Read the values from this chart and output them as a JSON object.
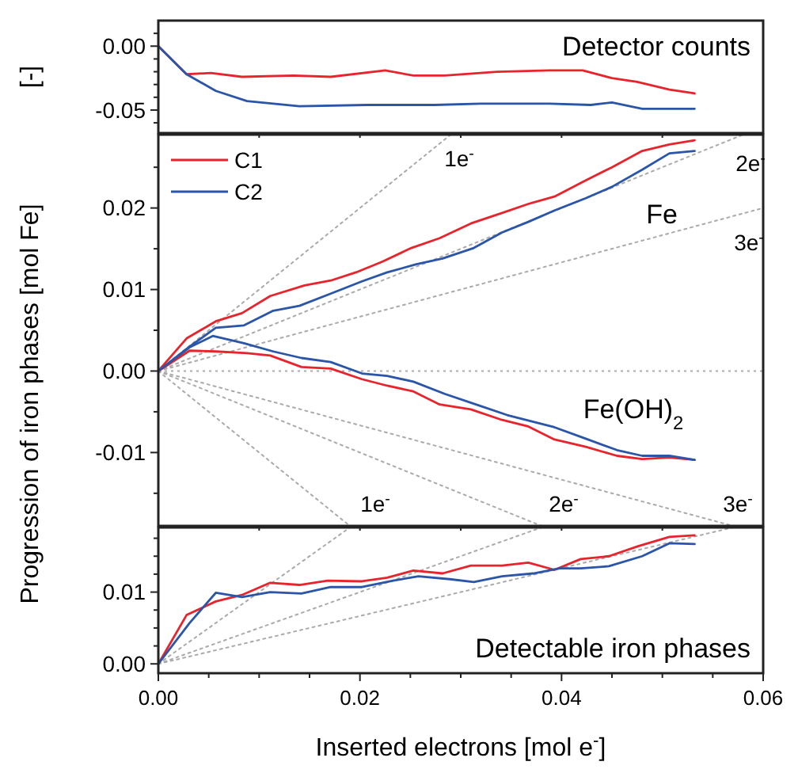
{
  "chart_data": [
    {
      "type": "line",
      "title": "Detector counts",
      "ylabel": "[-]",
      "xlim": [
        0,
        0.06
      ],
      "ylim": [
        -0.068,
        0.02
      ],
      "tick_labels": "y",
      "grid": false,
      "legend": false,
      "xticks": [
        {
          "value": 0,
          "label": null
        },
        {
          "value": 0.01,
          "label": null
        },
        {
          "value": 0.02,
          "label": null
        },
        {
          "value": 0.03,
          "label": null
        },
        {
          "value": 0.04,
          "label": null
        },
        {
          "value": 0.05,
          "label": null
        },
        {
          "value": 0.06,
          "label": null
        }
      ],
      "yticks": [
        {
          "value": -0.06,
          "label": null
        },
        {
          "value": -0.05,
          "label": "-0.05"
        },
        {
          "value": -0.04,
          "label": null
        },
        {
          "value": -0.03,
          "label": null
        },
        {
          "value": -0.02,
          "label": null
        },
        {
          "value": -0.01,
          "label": null
        },
        {
          "value": 0,
          "label": "0.00"
        },
        {
          "value": 0.01,
          "label": null
        }
      ],
      "series": [
        {
          "color": "#e8232c",
          "x": [
            0,
            0.0028,
            0.0052,
            0.0083,
            0.0134,
            0.0171,
            0.0225,
            0.0253,
            0.0284,
            0.0336,
            0.0388,
            0.0421,
            0.045,
            0.0475,
            0.0507,
            0.0532
          ],
          "values": [
            0,
            -0.022,
            -0.021,
            -0.024,
            -0.023,
            -0.024,
            -0.019,
            -0.023,
            -0.023,
            -0.02,
            -0.019,
            -0.019,
            -0.025,
            -0.028,
            -0.034,
            -0.037
          ]
        },
        {
          "color": "#2a55a8",
          "x": [
            0,
            0.0028,
            0.0057,
            0.0088,
            0.014,
            0.0207,
            0.0274,
            0.032,
            0.0388,
            0.0429,
            0.045,
            0.048,
            0.0532
          ],
          "values": [
            0,
            -0.022,
            -0.035,
            -0.043,
            -0.047,
            -0.046,
            -0.046,
            -0.045,
            -0.045,
            -0.046,
            -0.044,
            -0.049,
            -0.049
          ]
        }
      ]
    },
    {
      "type": "line",
      "ylabel": "Progression of iron phases [mol Fe]",
      "xlim": [
        0,
        0.06
      ],
      "ylim": [
        -0.019,
        0.029
      ],
      "tick_labels": "y",
      "grid": false,
      "legend": "top left",
      "xticks": [
        {
          "value": 0,
          "label": null
        },
        {
          "value": 0.01,
          "label": null
        },
        {
          "value": 0.02,
          "label": null
        },
        {
          "value": 0.03,
          "label": null
        },
        {
          "value": 0.04,
          "label": null
        },
        {
          "value": 0.05,
          "label": null
        },
        {
          "value": 0.06,
          "label": null
        }
      ],
      "yticks": [
        {
          "value": -0.015,
          "label": null
        },
        {
          "value": -0.01,
          "label": "-0.01"
        },
        {
          "value": -0.005,
          "label": null
        },
        {
          "value": 0,
          "label": "0.00"
        },
        {
          "value": 0.005,
          "label": null
        },
        {
          "value": 0.01,
          "label": "0.01"
        },
        {
          "value": 0.015,
          "label": null
        },
        {
          "value": 0.02,
          "label": "0.02"
        },
        {
          "value": 0.025,
          "label": null
        }
      ],
      "ref_lines": [
        {
          "axis": "y",
          "value": 0,
          "color": "#aaaaaa",
          "line_style": "dotted"
        }
      ],
      "annotations": [
        "1e$^{-}$",
        "2e$^{-}$",
        "3e$^{-}$",
        "1e$^{-}$",
        "2e$^{-}$",
        "3e$^{-}$",
        "Fe",
        "Fe(OH)$_{2}$"
      ],
      "series": [
        {
          "type": "line",
          "line_style": "dotted",
          "color": "#aaaaaa",
          "x": [
            0,
            0.029
          ],
          "values": [
            0,
            0.029
          ]
        },
        {
          "type": "line",
          "line_style": "dotted",
          "color": "#aaaaaa",
          "x": [
            0,
            0.058
          ],
          "values": [
            0,
            0.029
          ]
        },
        {
          "type": "line",
          "line_style": "dotted",
          "color": "#aaaaaa",
          "x": [
            0,
            0.06
          ],
          "values": [
            0,
            0.02
          ]
        },
        {
          "type": "line",
          "line_style": "dotted",
          "color": "#aaaaaa",
          "x": [
            0,
            0.019
          ],
          "values": [
            0,
            -0.019
          ]
        },
        {
          "type": "line",
          "line_style": "dotted",
          "color": "#aaaaaa",
          "x": [
            0,
            0.038
          ],
          "values": [
            0,
            -0.019
          ]
        },
        {
          "type": "line",
          "line_style": "dotted",
          "color": "#aaaaaa",
          "x": [
            0,
            0.057
          ],
          "values": [
            0,
            -0.019
          ]
        },
        {
          "name": "C1",
          "color": "#e8232c",
          "x": [
            0,
            0.0028,
            0.0057,
            0.0083,
            0.0111,
            0.0145,
            0.0171,
            0.0196,
            0.0222,
            0.0251,
            0.0279,
            0.031,
            0.0341,
            0.0367,
            0.0393,
            0.0424,
            0.045,
            0.048,
            0.0507,
            0.0532
          ],
          "values": [
            0,
            0.004,
            0.0061,
            0.0071,
            0.0092,
            0.0105,
            0.0111,
            0.0121,
            0.0134,
            0.0151,
            0.0163,
            0.0181,
            0.0194,
            0.0205,
            0.0214,
            0.0234,
            0.025,
            0.027,
            0.0278,
            0.0283
          ]
        },
        {
          "name": "C2",
          "color": "#2a55a8",
          "x": [
            0,
            0.0031,
            0.0057,
            0.0085,
            0.0114,
            0.014,
            0.0171,
            0.0202,
            0.0227,
            0.0256,
            0.0282,
            0.0313,
            0.0341,
            0.0367,
            0.0393,
            0.0424,
            0.045,
            0.048,
            0.0507,
            0.0532
          ],
          "values": [
            0,
            0.003,
            0.0053,
            0.0056,
            0.0074,
            0.008,
            0.0095,
            0.011,
            0.0121,
            0.0131,
            0.0138,
            0.0151,
            0.017,
            0.0183,
            0.0197,
            0.0212,
            0.0226,
            0.0247,
            0.0267,
            0.027
          ]
        },
        {
          "color": "#e8232c",
          "x": [
            0,
            0.0031,
            0.0057,
            0.0088,
            0.0111,
            0.0142,
            0.0171,
            0.0202,
            0.0227,
            0.0253,
            0.0279,
            0.031,
            0.0341,
            0.0367,
            0.0393,
            0.0424,
            0.0455,
            0.048,
            0.0507,
            0.0532
          ],
          "values": [
            0,
            0.0025,
            0.0024,
            0.0022,
            0.0019,
            0.0005,
            0.0003,
            -0.001,
            -0.0018,
            -0.0025,
            -0.0041,
            -0.0047,
            -0.006,
            -0.0068,
            -0.0084,
            -0.0093,
            -0.0104,
            -0.0108,
            -0.0106,
            -0.0109
          ]
        },
        {
          "color": "#2a55a8",
          "x": [
            0,
            0.0031,
            0.0054,
            0.0085,
            0.0114,
            0.0142,
            0.0171,
            0.0202,
            0.0227,
            0.0253,
            0.0284,
            0.0315,
            0.0346,
            0.0393,
            0.0424,
            0.0455,
            0.048,
            0.0507,
            0.0532
          ],
          "values": [
            0,
            0.0029,
            0.0043,
            0.0034,
            0.0024,
            0.0016,
            0.0011,
            -0.0003,
            -0.0006,
            -0.0013,
            -0.0028,
            -0.0041,
            -0.0054,
            -0.0069,
            -0.0083,
            -0.0097,
            -0.0104,
            -0.0104,
            -0.0109
          ]
        }
      ]
    },
    {
      "type": "line",
      "title": "Detectable iron phases",
      "xlabel": "Inserted electrons [mol e$^{-}$]",
      "xlim": [
        0,
        0.06
      ],
      "ylim": [
        -0.0013,
        0.019
      ],
      "grid": false,
      "legend": false,
      "xticks": [
        {
          "value": 0,
          "label": "0.00"
        },
        {
          "value": 0.005,
          "label": null
        },
        {
          "value": 0.01,
          "label": null
        },
        {
          "value": 0.015,
          "label": null
        },
        {
          "value": 0.02,
          "label": "0.02"
        },
        {
          "value": 0.025,
          "label": null
        },
        {
          "value": 0.03,
          "label": null
        },
        {
          "value": 0.035,
          "label": null
        },
        {
          "value": 0.04,
          "label": "0.04"
        },
        {
          "value": 0.045,
          "label": null
        },
        {
          "value": 0.05,
          "label": null
        },
        {
          "value": 0.055,
          "label": null
        },
        {
          "value": 0.06,
          "label": "0.06"
        }
      ],
      "yticks": [
        {
          "value": 0,
          "label": "0.00"
        },
        {
          "value": 0.0025,
          "label": null
        },
        {
          "value": 0.005,
          "label": null
        },
        {
          "value": 0.0075,
          "label": null
        },
        {
          "value": 0.01,
          "label": "0.01"
        },
        {
          "value": 0.0125,
          "label": null
        },
        {
          "value": 0.015,
          "label": null
        },
        {
          "value": 0.0175,
          "label": null
        }
      ],
      "series": [
        {
          "type": "line",
          "line_style": "dotted",
          "color": "#aaaaaa",
          "x": [
            0,
            0.019
          ],
          "values": [
            0,
            0.019
          ]
        },
        {
          "type": "line",
          "line_style": "dotted",
          "color": "#aaaaaa",
          "x": [
            0,
            0.038
          ],
          "values": [
            0,
            0.019
          ]
        },
        {
          "type": "line",
          "line_style": "dotted",
          "color": "#aaaaaa",
          "x": [
            0,
            0.057
          ],
          "values": [
            0,
            0.019
          ]
        },
        {
          "color": "#e8232c",
          "x": [
            0,
            0.0028,
            0.0057,
            0.0083,
            0.0111,
            0.014,
            0.0168,
            0.0202,
            0.0227,
            0.0253,
            0.0282,
            0.031,
            0.0341,
            0.0367,
            0.0393,
            0.0419,
            0.0447,
            0.0476,
            0.0507,
            0.0532
          ],
          "values": [
            0,
            0.0068,
            0.0087,
            0.0096,
            0.0113,
            0.011,
            0.0116,
            0.0115,
            0.012,
            0.013,
            0.0126,
            0.0137,
            0.0137,
            0.0141,
            0.0131,
            0.0146,
            0.015,
            0.0164,
            0.0177,
            0.0179
          ]
        },
        {
          "color": "#2a55a8",
          "x": [
            0,
            0.0031,
            0.0057,
            0.0083,
            0.0111,
            0.0142,
            0.0171,
            0.0202,
            0.0233,
            0.0258,
            0.0289,
            0.0313,
            0.0341,
            0.0372,
            0.0398,
            0.0419,
            0.0447,
            0.048,
            0.0507,
            0.0532
          ],
          "values": [
            0,
            0.0057,
            0.0099,
            0.0093,
            0.01,
            0.0098,
            0.0107,
            0.0107,
            0.0116,
            0.0122,
            0.0118,
            0.0114,
            0.0122,
            0.0126,
            0.0133,
            0.0133,
            0.0136,
            0.015,
            0.0168,
            0.0167
          ]
        }
      ]
    }
  ]
}
